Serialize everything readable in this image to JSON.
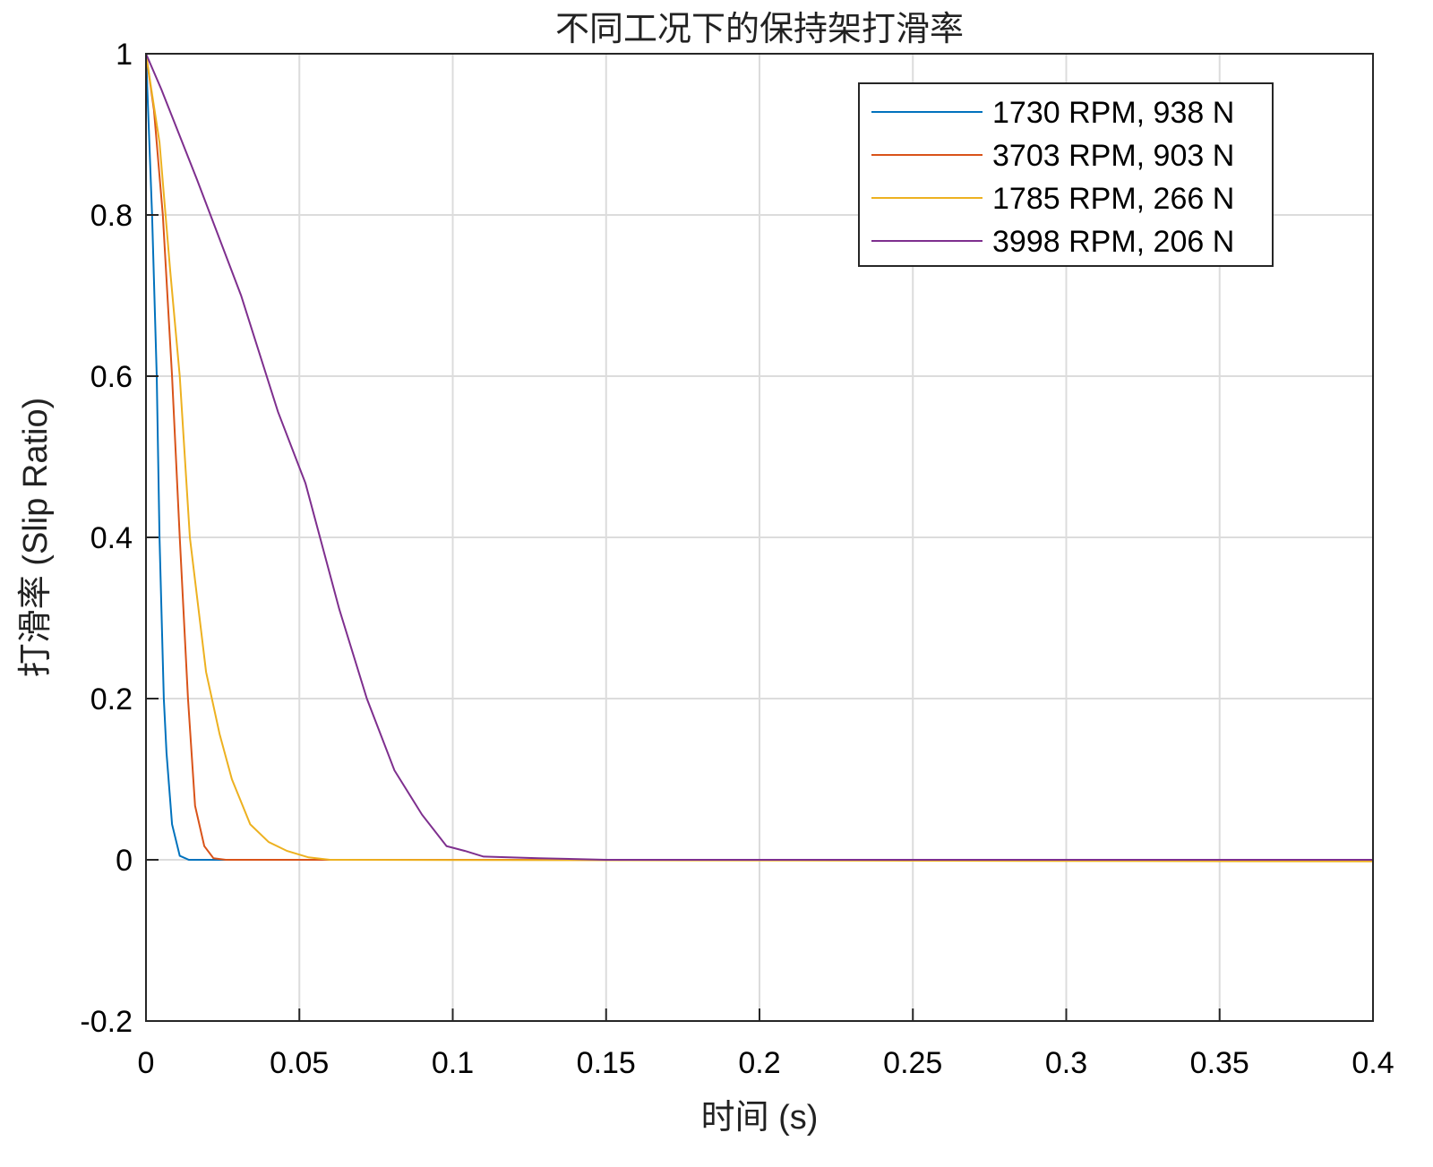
{
  "chart_data": {
    "type": "line",
    "title": "不同工况下的保持架打滑率",
    "xlabel": "时间 (s)",
    "ylabel": "打滑率 (Slip Ratio)",
    "xlim": [
      0,
      0.4
    ],
    "ylim": [
      -0.2,
      1
    ],
    "xticks": [
      0,
      0.05,
      0.1,
      0.15,
      0.2,
      0.25,
      0.3,
      0.35,
      0.4
    ],
    "xtick_labels": [
      "0",
      "0.05",
      "0.1",
      "0.15",
      "0.2",
      "0.25",
      "0.3",
      "0.35",
      "0.4"
    ],
    "yticks": [
      -0.2,
      0,
      0.2,
      0.4,
      0.6,
      0.8,
      1
    ],
    "ytick_labels": [
      "-0.2",
      "0",
      "0.2",
      "0.4",
      "0.6",
      "0.8",
      "1"
    ],
    "grid": true,
    "legend_position": "top-right",
    "series": [
      {
        "name": "1730 RPM, 938 N",
        "color": "#0072BD",
        "x": [
          0,
          0.002,
          0.0035,
          0.0044,
          0.0058,
          0.0067,
          0.0085,
          0.011,
          0.014,
          0.4
        ],
        "y": [
          1,
          0.8,
          0.6,
          0.4,
          0.2,
          0.133,
          0.044,
          0.005,
          0,
          0
        ]
      },
      {
        "name": "3703 RPM, 903 N",
        "color": "#D95319",
        "x": [
          0,
          0.0026,
          0.0055,
          0.0085,
          0.011,
          0.0137,
          0.016,
          0.019,
          0.022,
          0.026,
          0.4
        ],
        "y": [
          1,
          0.93,
          0.8,
          0.6,
          0.4,
          0.2,
          0.067,
          0.017,
          0.002,
          0,
          0
        ]
      },
      {
        "name": "1785 RPM, 266 N",
        "color": "#EDB120",
        "x": [
          0,
          0.002,
          0.0044,
          0.0079,
          0.011,
          0.0143,
          0.0196,
          0.024,
          0.028,
          0.034,
          0.04,
          0.046,
          0.053,
          0.06,
          0.4
        ],
        "y": [
          1,
          0.95,
          0.89,
          0.73,
          0.6,
          0.4,
          0.233,
          0.156,
          0.1,
          0.044,
          0.022,
          0.011,
          0.003,
          0,
          -0.002
        ]
      },
      {
        "name": "3998 RPM, 206 N",
        "color": "#7E2F8E",
        "x": [
          0,
          0.005,
          0.0166,
          0.031,
          0.043,
          0.052,
          0.063,
          0.072,
          0.081,
          0.09,
          0.098,
          0.104,
          0.11,
          0.128,
          0.15,
          0.4
        ],
        "y": [
          1,
          0.956,
          0.844,
          0.7,
          0.556,
          0.467,
          0.311,
          0.2,
          0.111,
          0.056,
          0.017,
          0.011,
          0.004,
          0.002,
          0,
          0
        ]
      }
    ]
  }
}
